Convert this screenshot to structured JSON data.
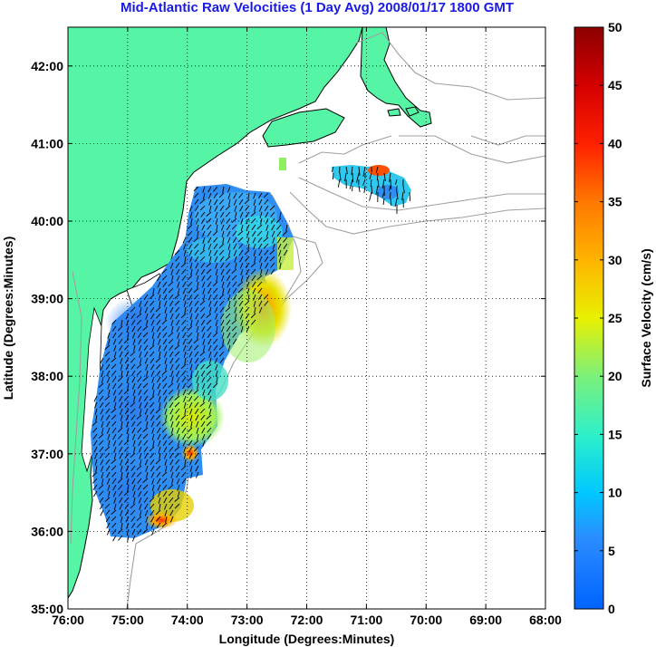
{
  "title": "Mid-Atlantic Raw Velocities (1 Day Avg) 2008/01/17 1800 GMT",
  "map": {
    "xlabel": "Longitude (Degrees:Minutes)",
    "ylabel": "Latitude (Degrees:Minutes)",
    "lon_range": [
      -76,
      -68
    ],
    "lat_range": [
      35,
      42.5
    ],
    "lon_ticks": [
      "76:00",
      "75:00",
      "74:00",
      "73:00",
      "72:00",
      "71:00",
      "70:00",
      "69:00",
      "68:00"
    ],
    "lat_ticks": [
      "35:00",
      "36:00",
      "37:00",
      "38:00",
      "39:00",
      "40:00",
      "41:00",
      "42:00"
    ],
    "grid": "dotted",
    "colors": {
      "land": "#55f5a5",
      "coastline": "#000000",
      "bathymetry": "#a0a0a0"
    }
  },
  "colorbar": {
    "label": "Surface Velocity (cm/s)",
    "ticks": [
      "0",
      "5",
      "10",
      "15",
      "20",
      "25",
      "30",
      "35",
      "40",
      "45",
      "50"
    ],
    "min": 0,
    "max": 50,
    "colormap": "jet"
  }
}
